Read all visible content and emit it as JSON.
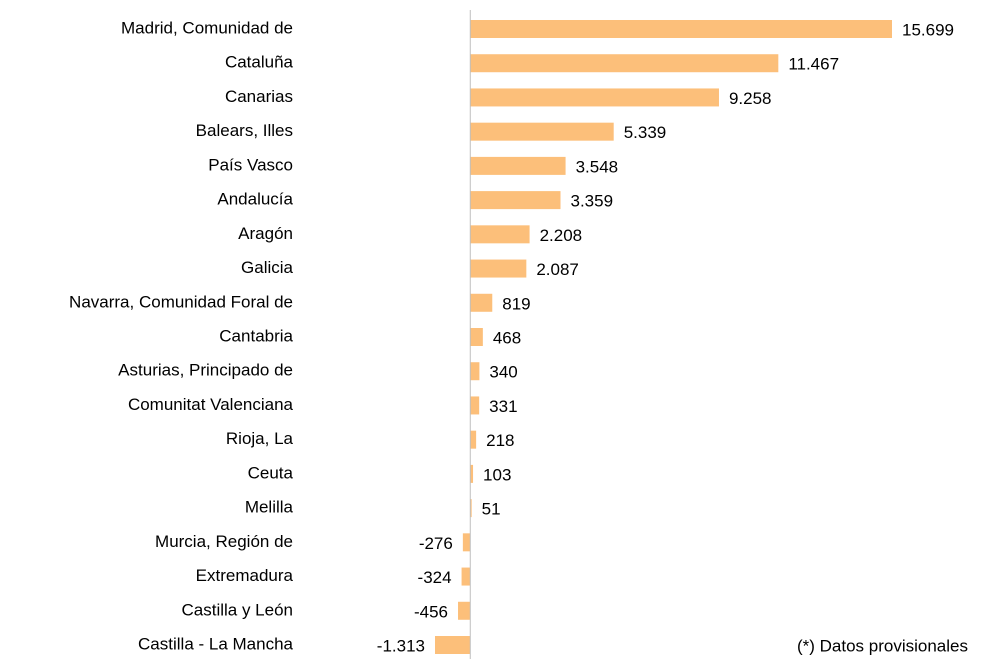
{
  "chart_data": {
    "type": "bar",
    "orientation": "horizontal",
    "categories": [
      "Madrid, Comunidad de",
      "Cataluña",
      "Canarias",
      "Balears, Illes",
      "País Vasco",
      "Andalucía",
      "Aragón",
      "Galicia",
      "Navarra, Comunidad Foral de",
      "Cantabria",
      "Asturias, Principado de",
      "Comunitat Valenciana",
      "Rioja, La",
      "Ceuta",
      "Melilla",
      "Murcia, Región de",
      "Extremadura",
      "Castilla y León",
      "Castilla - La Mancha"
    ],
    "values": [
      15699,
      11467,
      9258,
      5339,
      3548,
      3359,
      2208,
      2087,
      819,
      468,
      340,
      331,
      218,
      103,
      51,
      -276,
      -324,
      -456,
      -1313
    ],
    "value_labels": [
      "15.699",
      "11.467",
      "9.258",
      "5.339",
      "3.548",
      "3.359",
      "2.208",
      "2.087",
      "819",
      "468",
      "340",
      "331",
      "218",
      "103",
      "51",
      "-276",
      "-324",
      "-456",
      "-1.313"
    ],
    "color": "#fcbf7a",
    "annotation": "(*) Datos provisionales"
  }
}
